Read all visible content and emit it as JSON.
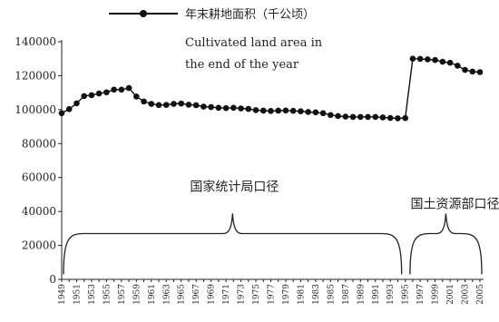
{
  "chart_data": {
    "type": "line",
    "legend": {
      "label_zh": "年末耕地面积（千公顷）",
      "label_en_line1": "Cultivated land area in",
      "label_en_line2": "the end of the year",
      "placement": "top-center"
    },
    "series": [
      {
        "name": "年末耕地面积（千公顷）",
        "segments": [
          {
            "x": [
              1949,
              1950,
              1951,
              1952,
              1953,
              1954,
              1955,
              1956,
              1957,
              1958,
              1959,
              1960,
              1961,
              1962,
              1963,
              1964,
              1965,
              1966,
              1967,
              1968,
              1969,
              1970,
              1971,
              1972,
              1973,
              1974,
              1975,
              1976,
              1977,
              1978,
              1979,
              1980,
              1981,
              1982,
              1983,
              1984,
              1985,
              1986,
              1987,
              1988,
              1989,
              1990,
              1991,
              1992,
              1993,
              1994,
              1995
            ],
            "y": [
              97900,
              100300,
              103700,
              108000,
              108500,
              109500,
              110200,
              111800,
              111800,
              112700,
              107700,
              104800,
              103400,
              102700,
              102800,
              103400,
              103600,
              102900,
              102600,
              101800,
              101500,
              101100,
              100900,
              101100,
              100700,
              100400,
              99700,
              99400,
              99200,
              99400,
              99500,
              99300,
              99000,
              98600,
              98400,
              97900,
              96800,
              96200,
              95900,
              95700,
              95700,
              95700,
              95700,
              95400,
              95100,
              94900,
              95000
            ]
          },
          {
            "x": [
              1996,
              1997,
              1998,
              1999,
              2000,
              2001,
              2002,
              2003,
              2004,
              2005
            ],
            "y": [
              130000,
              129900,
              129600,
              129200,
              128200,
              127600,
              125900,
              123400,
              122400,
              122100
            ]
          }
        ]
      }
    ],
    "y_ticks": [
      "0",
      "20000",
      "40000",
      "60000",
      "80000",
      "100000",
      "120000",
      "140000"
    ],
    "ylim": [
      0,
      140000
    ],
    "xlim": [
      1949,
      2005
    ],
    "x_ticks": [
      "1949",
      "1951",
      "1953",
      "1955",
      "1957",
      "1959",
      "1961",
      "1963",
      "1965",
      "1967",
      "1969",
      "1971",
      "1973",
      "1975",
      "1977",
      "1979",
      "1981",
      "1983",
      "1985",
      "1987",
      "1989",
      "1991",
      "1993",
      "1995",
      "1997",
      "1999",
      "2001",
      "2003",
      "2005"
    ],
    "annotations": [
      {
        "text": "国家统计局口径",
        "range": [
          1949,
          1995
        ]
      },
      {
        "text": "国土资源部口径",
        "range": [
          1996,
          2005
        ]
      }
    ],
    "grid": false,
    "xlabel": "",
    "ylabel": ""
  }
}
